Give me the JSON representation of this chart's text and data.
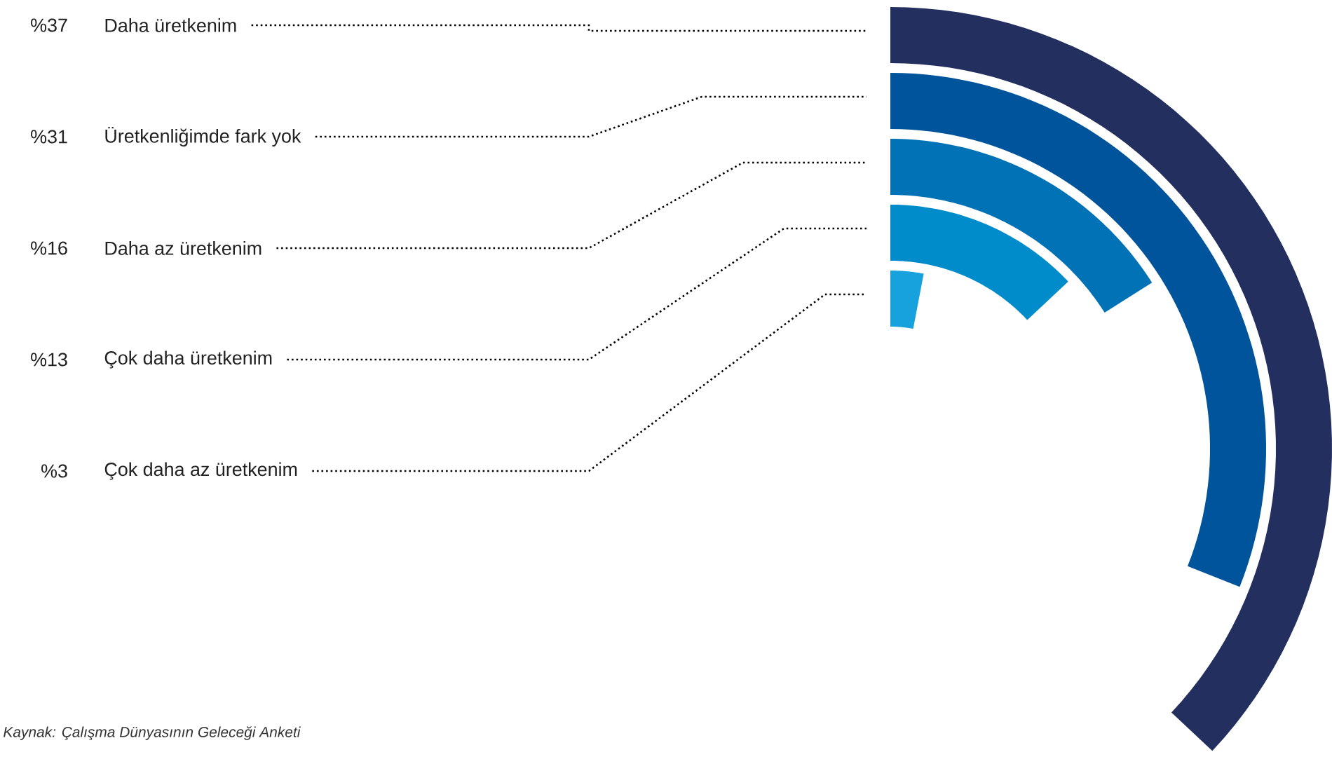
{
  "chart_data": {
    "type": "other",
    "categories": [
      "Daha üretkenim",
      "Üretkenliğimde fark yok",
      "Daha az üretkenim",
      "Çok daha üretkenim",
      "Çok daha az üretkenim"
    ],
    "values": [
      37,
      31,
      16,
      13,
      3
    ],
    "value_labels": [
      "%37",
      "%31",
      "%16",
      "%13",
      "%3"
    ],
    "colors": [
      "#222f5f",
      "#00549b",
      "#0072b5",
      "#008bcb",
      "#18a2dd"
    ],
    "annotations": [
      "Kaynak: Çalışma Dünyasının Geleceği Anketi"
    ]
  }
}
